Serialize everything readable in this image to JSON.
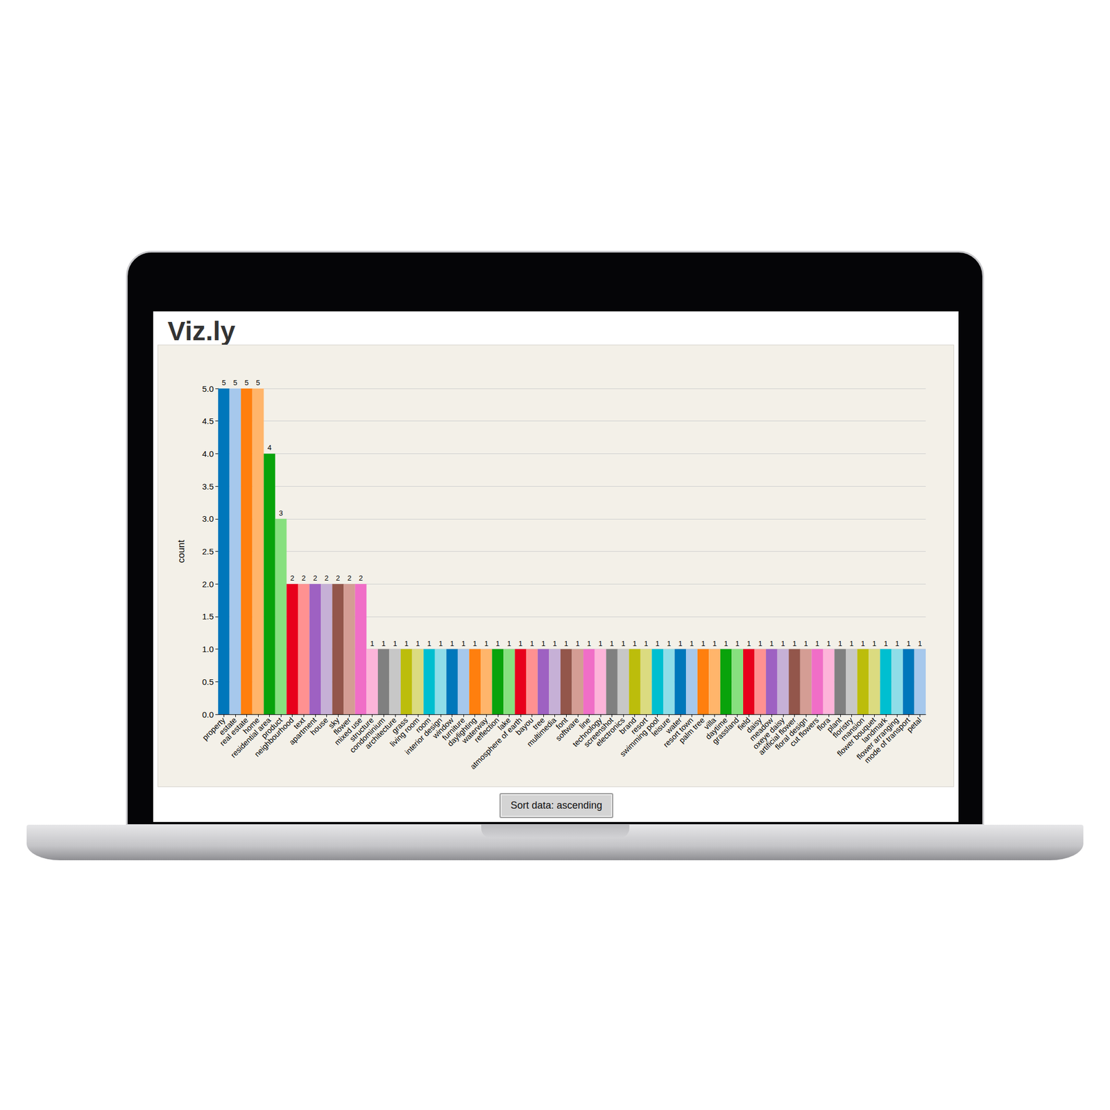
{
  "header": {
    "title": "Viz.ly"
  },
  "button": {
    "label": "Sort data: ascending"
  },
  "chart_data": {
    "type": "bar",
    "y_label": "count",
    "categories": [
      "property",
      "estate",
      "real estate",
      "home",
      "residential area",
      "product",
      "neighbourhood",
      "text",
      "apartment",
      "house",
      "sky",
      "flower",
      "mixed use",
      "structure",
      "condominium",
      "architecture",
      "grass",
      "living room",
      "room",
      "interior design",
      "window",
      "furniture",
      "daylighting",
      "waterway",
      "reflection",
      "lake",
      "atmosphere of earth",
      "bayou",
      "tree",
      "multimedia",
      "font",
      "software",
      "line",
      "technology",
      "screenshot",
      "electronics",
      "brand",
      "resort",
      "swimming pool",
      "leisure",
      "water",
      "resort town",
      "palm tree",
      "villa",
      "daytime",
      "grassland",
      "field",
      "daisy",
      "meadow",
      "oxeye daisy",
      "artificial flower",
      "floral design",
      "cut flowers",
      "flora",
      "plant",
      "floristry",
      "mansion",
      "flower bouquet",
      "landmark",
      "flower arranging",
      "mode of transport",
      "petal"
    ],
    "values": [
      5,
      5,
      5,
      5,
      4,
      3,
      2,
      2,
      2,
      2,
      2,
      2,
      2,
      1,
      1,
      1,
      1,
      1,
      1,
      1,
      1,
      1,
      1,
      1,
      1,
      1,
      1,
      1,
      1,
      1,
      1,
      1,
      1,
      1,
      1,
      1,
      1,
      1,
      1,
      1,
      1,
      1,
      1,
      1,
      1,
      1,
      1,
      1,
      1,
      1,
      1,
      1,
      1,
      1,
      1,
      1,
      1,
      1,
      1,
      1,
      1,
      1
    ],
    "colors": [
      "#0077bb",
      "#a6c8ec",
      "#ff7f0e",
      "#ffb56b",
      "#09a30b",
      "#87e07f",
      "#e8001c",
      "#ff9191",
      "#9e61c2",
      "#c6b0d6",
      "#93564b",
      "#d49d94",
      "#f06ec7",
      "#fdb4d9",
      "#808080",
      "#c7c7c7",
      "#bcbd0b",
      "#dbdb80",
      "#00bfd0",
      "#8fdde8",
      "#0077bb",
      "#a6c8ec",
      "#ff7f0e",
      "#ffb56b",
      "#09a30b",
      "#87e07f",
      "#e8001c",
      "#ff9191",
      "#9e61c2",
      "#c6b0d6",
      "#93564b",
      "#d49d94",
      "#f06ec7",
      "#fdb4d9",
      "#808080",
      "#c7c7c7",
      "#bcbd0b",
      "#dbdb80",
      "#00bfd0",
      "#8fdde8",
      "#0077bb",
      "#a6c8ec",
      "#ff7f0e",
      "#ffb56b",
      "#09a30b",
      "#87e07f",
      "#e8001c",
      "#ff9191",
      "#9e61c2",
      "#c6b0d6",
      "#93564b",
      "#d49d94",
      "#f06ec7",
      "#fdb4d9",
      "#808080",
      "#c7c7c7",
      "#bcbd0b",
      "#dbdb80",
      "#00bfd0",
      "#8fdde8",
      "#0077bb",
      "#a6c8ec"
    ],
    "ylim": [
      0,
      5
    ],
    "yticks": [
      {
        "value": 0,
        "label": "0.0"
      },
      {
        "value": 0.5,
        "label": "0.5"
      },
      {
        "value": 1,
        "label": "1.0"
      },
      {
        "value": 1.5,
        "label": "1.5"
      },
      {
        "value": 2,
        "label": "2.0"
      },
      {
        "value": 2.5,
        "label": "2.5"
      },
      {
        "value": 3,
        "label": "3.0"
      },
      {
        "value": 3.5,
        "label": "3.5"
      },
      {
        "value": 4,
        "label": "4.0"
      },
      {
        "value": 4.5,
        "label": "4.5"
      },
      {
        "value": 5,
        "label": "5.0"
      }
    ],
    "grid": true,
    "data_labels": true
  }
}
